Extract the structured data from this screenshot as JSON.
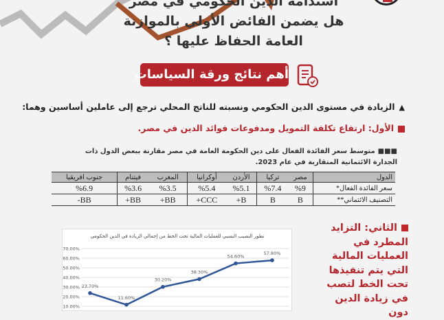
{
  "header": {
    "title_lines": [
      "استدامة الدين الحكومي في مصر",
      "هل يضمن الفائض الأولي بالموازنة",
      "العامة الحفاظ عليها ؟"
    ],
    "badge": "أهم نتائج ورقة السياسات",
    "badge_icon": "document-check-icon"
  },
  "colors": {
    "accent": "#b5262c",
    "background": "#f3f3f3"
  },
  "body": {
    "point1": "الزيادة في مستوى الدين الحكومي ونسبته للناتج المحلي ترجع إلى عاملين أساسين وهما:",
    "first": "الأول: ارتفاع تكلفة التمويل ومدفوعات فوائد الدين في مصر.",
    "table_caption_bullet": "■■■",
    "table_caption": "متوسط سعر الفائدة الفعال على دين الحكومة العامة في مصر مقارنة ببعض الدول ذات الجدارة الائتمانية المتقاربة في عام 2023.",
    "second": "الثاني: التزايد المطرد في العمليات المالية التي يتم تنفيذها تحت الخط لتصب في زيادة الدين دون"
  },
  "table": {
    "header": [
      "الدول",
      "مصر",
      "تركيا",
      "الأردن",
      "أوكرانيا",
      "المغرب",
      "فيتنام",
      "جنوب افريقيا"
    ],
    "rows": [
      [
        "سعر الفائدة الفعال*",
        "%9",
        "%7.4",
        "%5.1",
        "%5.4",
        "%3.5",
        "%3.6",
        "%6.9"
      ],
      [
        "التصنيف الائتماني**",
        "B",
        "B",
        "B+",
        "CCC+",
        "BB+",
        "BB+",
        "BB-"
      ]
    ]
  },
  "chart_data": {
    "type": "line",
    "title": "تطور النصيب النسبي للعمليات المالية تحت الخط من إجمالي الزيادة في الدين الحكومي",
    "values": [
      23.7,
      11.6,
      30.2,
      38.3,
      54.6,
      57.8
    ],
    "data_labels": [
      "23.70%",
      "11.60%",
      "30.20%",
      "38.30%",
      "54.60%",
      "57.80%"
    ],
    "y_ticks": [
      "70.00%",
      "60.00%",
      "50.00%",
      "40.00%",
      "30.00%",
      "20.00%",
      "10.00%"
    ],
    "ylim": [
      10,
      70
    ],
    "grid": true,
    "line_color": "#2f5597"
  }
}
